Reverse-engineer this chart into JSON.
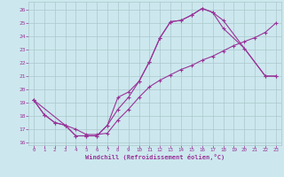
{
  "xlabel": "Windchill (Refroidissement éolien,°C)",
  "background_color": "#cce8ee",
  "grid_color": "#aac8cc",
  "line_color": "#993399",
  "xlim": [
    -0.5,
    23.5
  ],
  "ylim": [
    15.8,
    26.6
  ],
  "yticks": [
    16,
    17,
    18,
    19,
    20,
    21,
    22,
    23,
    24,
    25,
    26
  ],
  "xticks": [
    0,
    1,
    2,
    3,
    4,
    5,
    6,
    7,
    8,
    9,
    10,
    11,
    12,
    13,
    14,
    15,
    16,
    17,
    18,
    19,
    20,
    21,
    22,
    23
  ],
  "line1_x": [
    0,
    1,
    2,
    3,
    4,
    5,
    6,
    7,
    8,
    9,
    10,
    11,
    12,
    13,
    14,
    15,
    16,
    17,
    18,
    22,
    23
  ],
  "line1_y": [
    19.2,
    18.1,
    17.5,
    17.3,
    16.5,
    16.5,
    16.5,
    17.3,
    19.4,
    19.8,
    20.6,
    22.1,
    23.9,
    25.1,
    25.2,
    25.6,
    26.1,
    25.8,
    25.2,
    21.0,
    21.0
  ],
  "line2_x": [
    0,
    1,
    2,
    3,
    4,
    5,
    6,
    7,
    8,
    9,
    10,
    11,
    12,
    13,
    14,
    15,
    16,
    17,
    18,
    19,
    20,
    21,
    22,
    23
  ],
  "line2_y": [
    19.2,
    18.1,
    17.5,
    17.3,
    17.0,
    16.6,
    16.6,
    16.7,
    17.7,
    18.5,
    19.4,
    20.2,
    20.7,
    21.1,
    21.5,
    21.8,
    22.2,
    22.5,
    22.9,
    23.3,
    23.6,
    23.9,
    24.3,
    25.0
  ],
  "line3_x": [
    0,
    3,
    4,
    5,
    6,
    7,
    8,
    9,
    10,
    11,
    12,
    13,
    14,
    15,
    16,
    17,
    18,
    20,
    22,
    23
  ],
  "line3_y": [
    19.2,
    17.3,
    16.5,
    16.5,
    16.5,
    17.3,
    18.5,
    19.4,
    20.6,
    22.1,
    23.9,
    25.1,
    25.2,
    25.6,
    26.1,
    25.8,
    24.6,
    23.1,
    21.0,
    21.0
  ]
}
